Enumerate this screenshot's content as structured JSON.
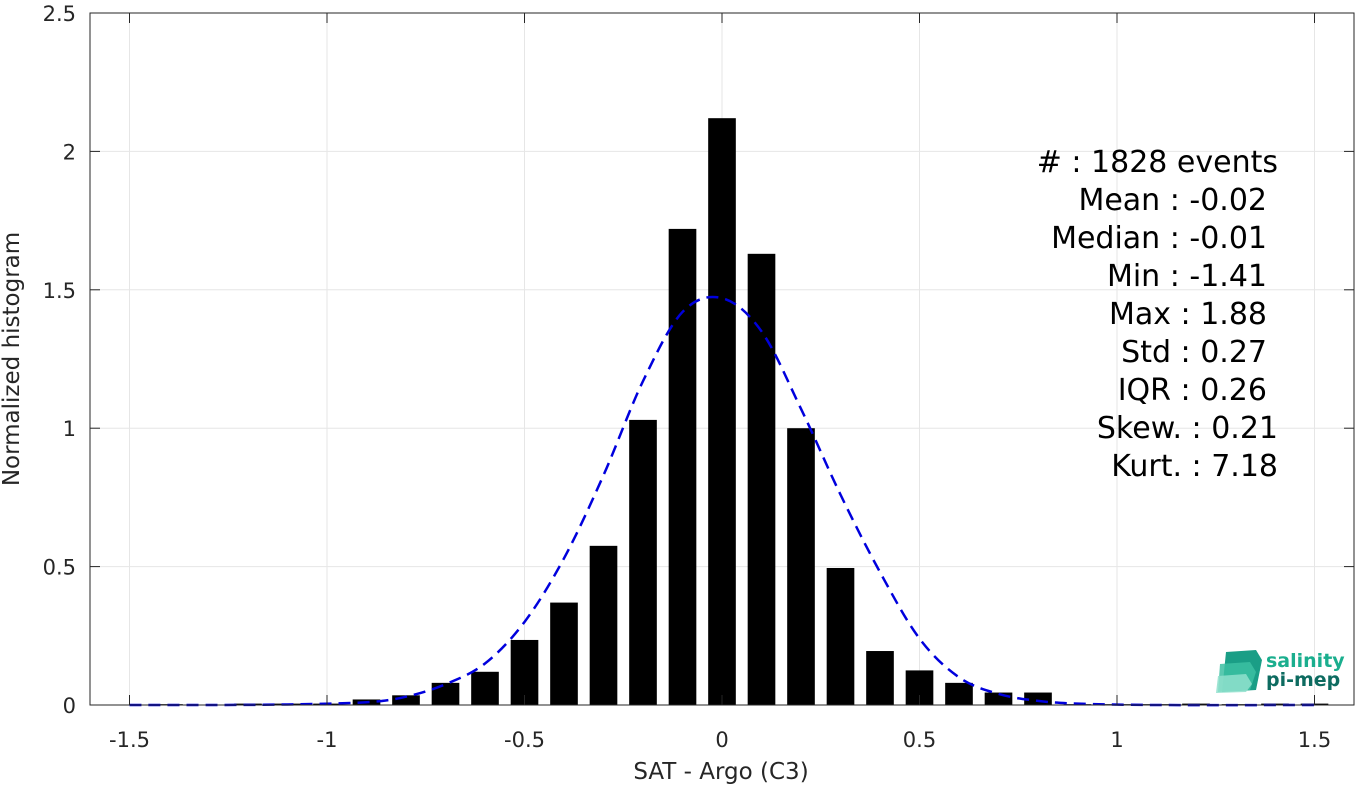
{
  "chart_data": {
    "type": "bar",
    "xlabel": "SAT - Argo (C3)",
    "ylabel": "Normalized histogram",
    "xlim": [
      -1.6,
      1.6
    ],
    "ylim": [
      0,
      2.5
    ],
    "grid": true,
    "xticks": [
      {
        "value": -1.5,
        "label": "-1.5"
      },
      {
        "value": -1,
        "label": "-1"
      },
      {
        "value": -0.5,
        "label": "-0.5"
      },
      {
        "value": 0,
        "label": "0"
      },
      {
        "value": 0.5,
        "label": "0.5"
      },
      {
        "value": 1,
        "label": "1"
      },
      {
        "value": 1.5,
        "label": "1.5"
      }
    ],
    "yticks": [
      {
        "value": 0,
        "label": "0"
      },
      {
        "value": 0.5,
        "label": "0.5"
      },
      {
        "value": 1,
        "label": "1"
      },
      {
        "value": 1.5,
        "label": "1.5"
      },
      {
        "value": 2,
        "label": "2"
      },
      {
        "value": 2.5,
        "label": "2.5"
      }
    ],
    "bar_width": 0.07,
    "bars": [
      {
        "x": -1.4,
        "y": 0.003
      },
      {
        "x": -1.2,
        "y": 0.005
      },
      {
        "x": -1.1,
        "y": 0.005
      },
      {
        "x": -1.0,
        "y": 0.005
      },
      {
        "x": -0.9,
        "y": 0.02
      },
      {
        "x": -0.8,
        "y": 0.035
      },
      {
        "x": -0.7,
        "y": 0.08
      },
      {
        "x": -0.6,
        "y": 0.12
      },
      {
        "x": -0.5,
        "y": 0.235
      },
      {
        "x": -0.4,
        "y": 0.37
      },
      {
        "x": -0.3,
        "y": 0.575
      },
      {
        "x": -0.2,
        "y": 1.03
      },
      {
        "x": -0.1,
        "y": 1.72
      },
      {
        "x": 0.0,
        "y": 2.12
      },
      {
        "x": 0.1,
        "y": 1.63
      },
      {
        "x": 0.2,
        "y": 1.0
      },
      {
        "x": 0.3,
        "y": 0.495
      },
      {
        "x": 0.4,
        "y": 0.195
      },
      {
        "x": 0.5,
        "y": 0.125
      },
      {
        "x": 0.6,
        "y": 0.08
      },
      {
        "x": 0.7,
        "y": 0.045
      },
      {
        "x": 0.8,
        "y": 0.045
      },
      {
        "x": 0.9,
        "y": 0.003
      },
      {
        "x": 1.0,
        "y": 0.003
      },
      {
        "x": 1.1,
        "y": 0.003
      },
      {
        "x": 1.2,
        "y": 0.005
      },
      {
        "x": 1.3,
        "y": 0.003
      },
      {
        "x": 1.4,
        "y": 0.005
      },
      {
        "x": 1.5,
        "y": 0.005
      }
    ],
    "fit_curve": {
      "style": "dashed",
      "color": "#0000dd",
      "points": [
        [
          -1.5,
          0.0
        ],
        [
          -1.3,
          0.0
        ],
        [
          -1.1,
          0.002
        ],
        [
          -0.9,
          0.01
        ],
        [
          -0.8,
          0.03
        ],
        [
          -0.7,
          0.075
        ],
        [
          -0.6,
          0.15
        ],
        [
          -0.5,
          0.3
        ],
        [
          -0.4,
          0.53
        ],
        [
          -0.3,
          0.83
        ],
        [
          -0.2,
          1.17
        ],
        [
          -0.1,
          1.42
        ],
        [
          0.0,
          1.47
        ],
        [
          0.1,
          1.35
        ],
        [
          0.2,
          1.07
        ],
        [
          0.3,
          0.76
        ],
        [
          0.4,
          0.48
        ],
        [
          0.5,
          0.24
        ],
        [
          0.6,
          0.1
        ],
        [
          0.7,
          0.04
        ],
        [
          0.8,
          0.015
        ],
        [
          0.9,
          0.005
        ],
        [
          1.1,
          0.0
        ],
        [
          1.5,
          0.0
        ]
      ]
    }
  },
  "stats": [
    {
      "label": "#  : 1828 events"
    },
    {
      "label": "Mean : -0.02"
    },
    {
      "label": "Median : -0.01"
    },
    {
      "label": "Min : -1.41"
    },
    {
      "label": "Max : 1.88"
    },
    {
      "label": "Std : 0.27"
    },
    {
      "label": "IQR : 0.26"
    },
    {
      "label": "Skew. : 0.21"
    },
    {
      "label": "Kurt. : 7.18"
    }
  ],
  "logo": {
    "line1": "salinity",
    "line2": "pi-mep",
    "color1": "#1aae8e",
    "color2": "#0d6b60"
  },
  "colors": {
    "bar": "#000000",
    "grid": "#e6e6e6",
    "axis": "#262626"
  }
}
